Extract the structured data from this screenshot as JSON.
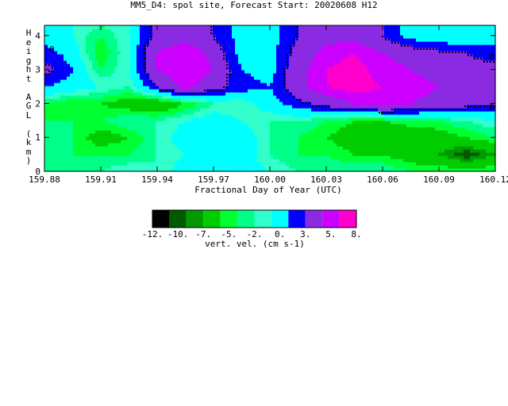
{
  "title": "MM5_D4: spol site,  Forecast Start: 20020608 H12",
  "chart_data": {
    "type": "heatmap",
    "xlabel": "Fractional Day of Year (UTC)",
    "ylabel": "Height AGL (km)",
    "xlim": [
      159.88,
      160.12
    ],
    "ylim": [
      0,
      4.3
    ],
    "xticks": [
      "159.88",
      "159.91",
      "159.94",
      "159.97",
      "160.00",
      "160.03",
      "160.06",
      "160.09",
      "160.12"
    ],
    "yticks": [
      "0",
      "1",
      "2",
      "3",
      "4"
    ],
    "x": [
      159.88,
      159.895,
      159.91,
      159.925,
      159.94,
      159.955,
      159.97,
      159.985,
      160.0,
      160.015,
      160.03,
      160.045,
      160.06,
      160.075,
      160.09,
      160.105,
      160.12
    ],
    "y": [
      0,
      0.5,
      1.0,
      1.5,
      2.0,
      2.5,
      3.0,
      3.5,
      4.0,
      4.3
    ],
    "z": [
      [
        -5,
        -5,
        -5,
        -4,
        -5,
        -3,
        -2,
        -3,
        -4,
        -5,
        -5,
        -5,
        -5,
        -6,
        -6,
        -6,
        -6
      ],
      [
        -5,
        -6,
        -6,
        -6,
        -5,
        -4,
        -2,
        -3,
        -5,
        -6,
        -6,
        -7,
        -7,
        -8,
        -9,
        -11,
        -9
      ],
      [
        -5,
        -6,
        -8,
        -7,
        -5,
        -3,
        -2,
        -3,
        -5,
        -6,
        -7,
        -8,
        -9,
        -9,
        -8,
        -7,
        -6
      ],
      [
        -6,
        -6,
        -6,
        -5,
        -5,
        -4,
        -3,
        -4,
        -5,
        -5,
        -6,
        -7,
        -7,
        -6,
        -6,
        -5,
        -4
      ],
      [
        -6,
        -7,
        -7,
        -8,
        -9,
        -7,
        -5,
        -5,
        -3,
        -1,
        1,
        3,
        4,
        3,
        2,
        1,
        0
      ],
      [
        -2,
        -3,
        -4,
        -5,
        0,
        4,
        1,
        -1,
        -2,
        2,
        5,
        6,
        5,
        4,
        3,
        2,
        2
      ],
      [
        1,
        -2,
        -6,
        -4,
        3,
        5,
        3,
        -2,
        -3,
        2,
        5,
        6,
        4,
        3,
        2,
        1,
        1
      ],
      [
        -1,
        -3,
        -7,
        -4,
        3,
        5,
        2,
        -3,
        -3,
        1,
        4,
        5,
        3,
        2,
        1,
        0,
        -1
      ],
      [
        -3,
        -4,
        -6,
        -4,
        1,
        2,
        0,
        -3,
        -3,
        0,
        2,
        2,
        0,
        -3,
        -4,
        -4,
        -3
      ],
      [
        -3,
        -4,
        -5,
        -4,
        1,
        2,
        0,
        -3,
        -3,
        0,
        2,
        2,
        0,
        -3,
        -4,
        -4,
        -3
      ]
    ],
    "contour_labels": [
      "0",
      "0",
      "0"
    ],
    "colorbar": {
      "label": "vert. vel. (cm s-1)",
      "ticks": [
        "-12.",
        "-10.",
        "-7.",
        "-5.",
        "-2.",
        "0.",
        "3.",
        "5.",
        "8."
      ],
      "levels": [
        -12,
        -11,
        -10,
        -9,
        -7,
        -6,
        -5,
        -4,
        -2,
        0,
        3,
        5,
        8
      ],
      "colors": [
        "#000000",
        "#005a00",
        "#009900",
        "#00cc00",
        "#00ff33",
        "#00ff88",
        "#33ffcc",
        "#00ffff",
        "#0000ff",
        "#8a2be2",
        "#cc00ff",
        "#ff00cc"
      ]
    }
  }
}
